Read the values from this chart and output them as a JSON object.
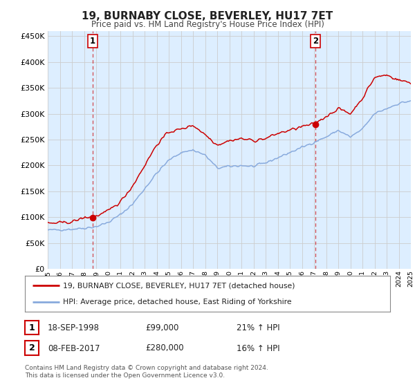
{
  "title": "19, BURNABY CLOSE, BEVERLEY, HU17 7ET",
  "subtitle": "Price paid vs. HM Land Registry's House Price Index (HPI)",
  "legend_line1": "19, BURNABY CLOSE, BEVERLEY, HU17 7ET (detached house)",
  "legend_line2": "HPI: Average price, detached house, East Riding of Yorkshire",
  "annotation1_label": "1",
  "annotation1_date": "18-SEP-1998",
  "annotation1_price": "£99,000",
  "annotation1_hpi": "21% ↑ HPI",
  "annotation2_label": "2",
  "annotation2_date": "08-FEB-2017",
  "annotation2_price": "£280,000",
  "annotation2_hpi": "16% ↑ HPI",
  "footer": "Contains HM Land Registry data © Crown copyright and database right 2024.\nThis data is licensed under the Open Government Licence v3.0.",
  "line_color_red": "#cc0000",
  "line_color_blue": "#88aadd",
  "vline_color": "#cc0000",
  "grid_color": "#cccccc",
  "bg_color": "#ffffff",
  "chart_bg": "#ddeeff",
  "ylim": [
    0,
    460000
  ],
  "yticks": [
    0,
    50000,
    100000,
    150000,
    200000,
    250000,
    300000,
    350000,
    400000,
    450000
  ],
  "sale1_year": 1998.72,
  "sale1_price": 99000,
  "sale2_year": 2017.1,
  "sale2_price": 280000,
  "hpi_anchors_x": [
    1995,
    1996,
    1997,
    1998,
    1999,
    2000,
    2001,
    2002,
    2003,
    2004,
    2005,
    2006,
    2007,
    2008,
    2009,
    2010,
    2011,
    2012,
    2013,
    2014,
    2015,
    2016,
    2017,
    2018,
    2019,
    2020,
    2021,
    2022,
    2023,
    2024,
    2025
  ],
  "hpi_anchors_y": [
    75000,
    76000,
    77000,
    79000,
    82000,
    90000,
    105000,
    125000,
    155000,
    185000,
    210000,
    225000,
    230000,
    220000,
    195000,
    198000,
    200000,
    198000,
    205000,
    215000,
    225000,
    235000,
    245000,
    255000,
    268000,
    255000,
    270000,
    300000,
    310000,
    320000,
    325000
  ],
  "prop_anchors_x": [
    1995,
    1996,
    1997,
    1998,
    1999,
    2000,
    2001,
    2002,
    2003,
    2004,
    2005,
    2006,
    2007,
    2008,
    2009,
    2010,
    2011,
    2012,
    2013,
    2014,
    2015,
    2016,
    2017,
    2018,
    2019,
    2020,
    2021,
    2022,
    2023,
    2024,
    2025
  ],
  "prop_anchors_y": [
    88000,
    89000,
    91000,
    99000,
    102000,
    112000,
    130000,
    160000,
    200000,
    240000,
    265000,
    270000,
    278000,
    260000,
    240000,
    248000,
    252000,
    248000,
    252000,
    262000,
    268000,
    275000,
    280000,
    295000,
    310000,
    300000,
    330000,
    370000,
    375000,
    365000,
    360000
  ],
  "noise_seed": 42,
  "noise_scale_hpi": 1800,
  "noise_scale_prop": 2200
}
